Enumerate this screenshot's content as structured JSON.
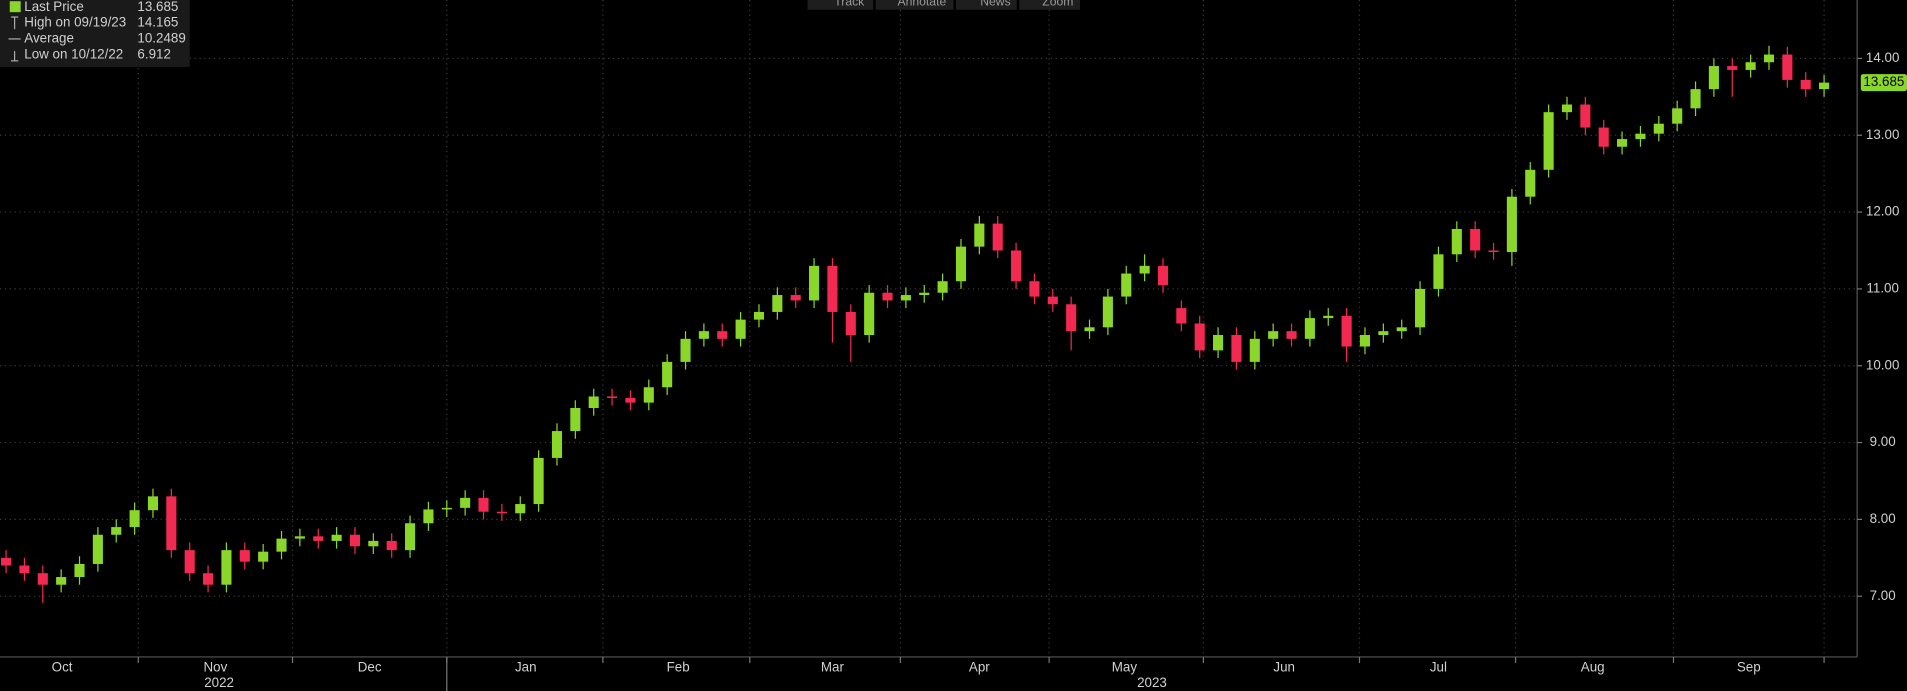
{
  "toolbar": [
    "Track",
    "Annotate",
    "News",
    "Zoom"
  ],
  "chart_data": {
    "type": "candlestick",
    "open": [
      7.5,
      7.4,
      7.3,
      7.15,
      7.25,
      7.42,
      7.8,
      7.9,
      8.12,
      8.3,
      7.6,
      7.3,
      7.15,
      7.6,
      7.45,
      7.58,
      7.75,
      7.78,
      7.72,
      7.8,
      7.65,
      7.72,
      7.6,
      7.95,
      8.13,
      8.15,
      8.28,
      8.1,
      8.08,
      8.2,
      8.8,
      9.15,
      9.45,
      9.6,
      9.58,
      9.52,
      9.72,
      10.05,
      10.35,
      10.45,
      10.35,
      10.6,
      10.7,
      10.92,
      10.85,
      11.3,
      10.7,
      10.4,
      10.95,
      10.85,
      10.92,
      10.95,
      11.1,
      11.55,
      11.85,
      11.5,
      11.1,
      10.9,
      10.8,
      10.45,
      10.5,
      10.9,
      11.2,
      11.3,
      10.75,
      10.55,
      10.2,
      10.4,
      10.05,
      10.35,
      10.45,
      10.35,
      10.62,
      10.65,
      10.25,
      10.4,
      10.45,
      10.5,
      11.0,
      11.45,
      11.78,
      11.5,
      11.48,
      12.2,
      12.55,
      13.3,
      13.4,
      13.1,
      12.85,
      12.95,
      13.02,
      13.15,
      13.35,
      13.6,
      13.9,
      13.85,
      13.95,
      14.05,
      13.72,
      13.6
    ],
    "high": [
      7.6,
      7.5,
      7.4,
      7.35,
      7.52,
      7.9,
      8.0,
      8.22,
      8.4,
      8.4,
      7.7,
      7.4,
      7.7,
      7.7,
      7.68,
      7.85,
      7.88,
      7.88,
      7.9,
      7.9,
      7.82,
      7.82,
      8.05,
      8.23,
      8.25,
      8.38,
      8.38,
      8.2,
      8.3,
      8.9,
      9.25,
      9.55,
      9.7,
      9.7,
      9.68,
      9.82,
      10.15,
      10.45,
      10.55,
      10.55,
      10.7,
      10.8,
      11.02,
      11.02,
      11.4,
      11.4,
      10.8,
      11.05,
      11.05,
      11.02,
      11.05,
      11.2,
      11.65,
      11.95,
      11.95,
      11.6,
      11.2,
      11.0,
      10.9,
      10.6,
      11.0,
      11.3,
      11.45,
      11.4,
      10.85,
      10.65,
      10.5,
      10.5,
      10.45,
      10.55,
      10.55,
      10.72,
      10.75,
      10.75,
      10.5,
      10.55,
      10.6,
      11.1,
      11.55,
      11.88,
      11.88,
      11.6,
      12.3,
      12.65,
      13.4,
      13.5,
      13.5,
      13.2,
      13.05,
      13.12,
      13.25,
      13.45,
      13.7,
      14.0,
      14.0,
      14.05,
      14.165,
      14.15,
      13.82,
      13.785
    ],
    "low": [
      7.3,
      7.2,
      6.912,
      7.05,
      7.15,
      7.32,
      7.7,
      7.8,
      8.02,
      7.5,
      7.2,
      7.05,
      7.05,
      7.35,
      7.35,
      7.48,
      7.65,
      7.62,
      7.62,
      7.55,
      7.55,
      7.5,
      7.5,
      7.85,
      8.03,
      8.05,
      8.0,
      7.98,
      7.98,
      8.1,
      8.7,
      9.05,
      9.35,
      9.48,
      9.42,
      9.42,
      9.62,
      9.95,
      10.25,
      10.25,
      10.25,
      10.5,
      10.6,
      10.75,
      10.75,
      10.3,
      10.05,
      10.3,
      10.75,
      10.75,
      10.82,
      10.85,
      11.0,
      11.45,
      11.4,
      11.0,
      10.8,
      10.7,
      10.2,
      10.35,
      10.4,
      10.8,
      11.1,
      10.95,
      10.45,
      10.1,
      10.1,
      9.95,
      9.95,
      10.25,
      10.25,
      10.25,
      10.52,
      10.05,
      10.15,
      10.3,
      10.35,
      10.4,
      10.9,
      11.35,
      11.4,
      11.38,
      11.3,
      12.1,
      12.45,
      13.2,
      13.0,
      12.75,
      12.75,
      12.85,
      12.92,
      13.05,
      13.25,
      13.5,
      13.5,
      13.75,
      13.85,
      13.62,
      13.5,
      13.5
    ],
    "close": [
      7.4,
      7.3,
      7.15,
      7.25,
      7.42,
      7.8,
      7.9,
      8.12,
      8.3,
      7.6,
      7.3,
      7.15,
      7.6,
      7.45,
      7.58,
      7.75,
      7.78,
      7.72,
      7.8,
      7.65,
      7.72,
      7.6,
      7.95,
      8.13,
      8.15,
      8.28,
      8.1,
      8.08,
      8.2,
      8.8,
      9.15,
      9.45,
      9.6,
      9.58,
      9.52,
      9.72,
      10.05,
      10.35,
      10.45,
      10.35,
      10.6,
      10.7,
      10.92,
      10.85,
      11.3,
      10.7,
      10.4,
      10.95,
      10.85,
      10.92,
      10.95,
      11.1,
      11.55,
      11.85,
      11.5,
      11.1,
      10.9,
      10.8,
      10.45,
      10.5,
      10.9,
      11.2,
      11.3,
      11.05,
      10.55,
      10.2,
      10.4,
      10.05,
      10.35,
      10.45,
      10.35,
      10.62,
      10.65,
      10.25,
      10.4,
      10.45,
      10.5,
      11.0,
      11.45,
      11.78,
      11.5,
      11.48,
      12.2,
      12.55,
      13.3,
      13.4,
      13.1,
      12.85,
      12.95,
      13.02,
      13.15,
      13.35,
      13.6,
      13.9,
      13.85,
      13.95,
      14.05,
      13.72,
      13.6,
      13.685
    ],
    "up_color": "#8ad62a",
    "down_color": "#f22a51",
    "ylim": [
      6.21,
      14.76
    ],
    "yticks": [
      {
        "value": 7,
        "label": "7.00"
      },
      {
        "value": 8,
        "label": "8.00"
      },
      {
        "value": 9,
        "label": "9.00"
      },
      {
        "value": 10,
        "label": "10.00"
      },
      {
        "value": 11,
        "label": "11.00"
      },
      {
        "value": 12,
        "label": "12.00"
      },
      {
        "value": 13,
        "label": "13.00"
      },
      {
        "value": 14,
        "label": "14.00"
      }
    ],
    "xlim": [
      -0.33,
      100.8
    ],
    "xticks": [
      {
        "value": 3.05,
        "label": "Oct"
      },
      {
        "value": 11.4,
        "label": "Nov"
      },
      {
        "value": 19.8,
        "label": "Dec"
      },
      {
        "value": 28.3,
        "label": "Jan"
      },
      {
        "value": 36.6,
        "label": "Feb"
      },
      {
        "value": 45.0,
        "label": "Mar"
      },
      {
        "value": 53.0,
        "label": "Apr"
      },
      {
        "value": 60.9,
        "label": "May"
      },
      {
        "value": 69.6,
        "label": "Jun"
      },
      {
        "value": 78.0,
        "label": "Jul"
      },
      {
        "value": 86.4,
        "label": "Aug"
      },
      {
        "value": 94.9,
        "label": "Sep"
      }
    ],
    "xgrid": [
      7.2,
      15.6,
      24.0,
      32.5,
      40.5,
      48.7,
      56.8,
      65.2,
      73.7,
      82.2,
      90.8,
      99.0
    ],
    "years": [
      {
        "value": 11.6,
        "label": "2022"
      },
      {
        "value": 62.4,
        "label": "2023"
      }
    ],
    "year_divider": 24.0,
    "grid": true,
    "last_price_color": "#8ad62a",
    "legend": [
      {
        "label": "Last Price",
        "value": 13.685
      },
      {
        "label": "High on 09/19/23",
        "value": 14.165
      },
      {
        "label": "Average",
        "value": 10.2489
      },
      {
        "label": "Low on 10/12/22",
        "value": 6.912
      }
    ]
  }
}
